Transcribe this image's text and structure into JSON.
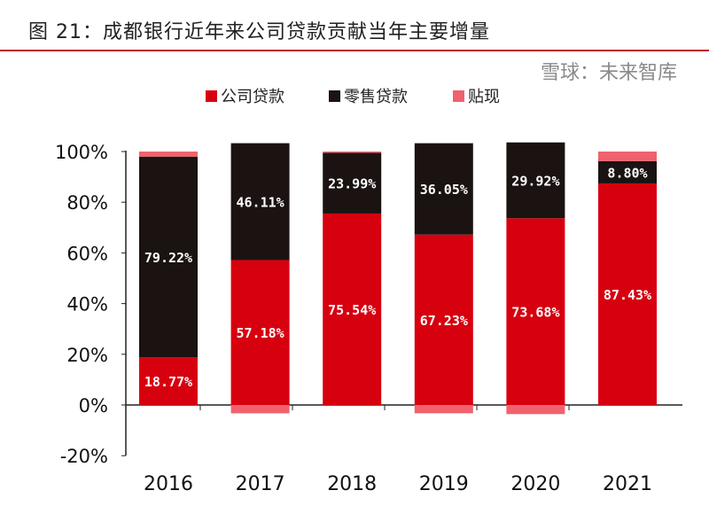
{
  "title": "图 21：成都银行近年来公司贷款贡献当年主要增量",
  "watermark": "雪球：未来智库",
  "chart_data": {
    "type": "bar",
    "stacked": true,
    "categories": [
      "2016",
      "2017",
      "2018",
      "2019",
      "2020",
      "2021"
    ],
    "series": [
      {
        "name": "公司贷款",
        "color": "#d7000f",
        "values": [
          18.77,
          57.18,
          75.54,
          67.23,
          73.68,
          87.43
        ],
        "labels": [
          "18.77%",
          "57.18%",
          "75.54%",
          "67.23%",
          "73.68%",
          "87.43%"
        ]
      },
      {
        "name": "零售贷款",
        "color": "#1a1311",
        "values": [
          79.22,
          46.11,
          23.99,
          36.05,
          29.92,
          8.8
        ],
        "labels": [
          "79.22%",
          "46.11%",
          "23.99%",
          "36.05%",
          "29.92%",
          "8.80%"
        ]
      },
      {
        "name": "贴现",
        "color": "#f0626d",
        "values": [
          2.01,
          -3.29,
          0.47,
          -3.28,
          -3.6,
          3.77
        ]
      }
    ],
    "ylim": [
      -20,
      100
    ],
    "yticks": [
      "-20%",
      "0%",
      "20%",
      "40%",
      "60%",
      "80%",
      "100%"
    ],
    "legend": "top",
    "grid": false
  }
}
